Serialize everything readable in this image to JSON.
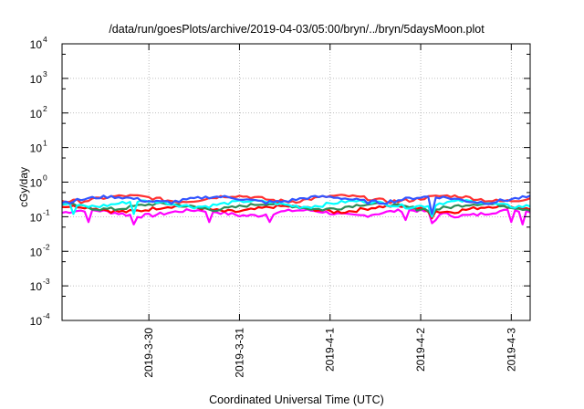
{
  "chart_data": {
    "type": "line",
    "title": "/data/run/goesPlots/archive/2019-04-03/05:00/bryn/../bryn/5daysMoon.plot",
    "xlabel": "Coordinated Universal Time (UTC)",
    "ylabel": "cGy/day",
    "yscale": "log",
    "ylim": [
      0.0001,
      10000
    ],
    "yticks": [
      {
        "mant": "10",
        "exp": "-4",
        "value": 0.0001
      },
      {
        "mant": "10",
        "exp": "-3",
        "value": 0.001
      },
      {
        "mant": "10",
        "exp": "-2",
        "value": 0.01
      },
      {
        "mant": "10",
        "exp": "-1",
        "value": 0.1
      },
      {
        "mant": "10",
        "exp": "0",
        "value": 1
      },
      {
        "mant": "10",
        "exp": "1",
        "value": 10
      },
      {
        "mant": "10",
        "exp": "2",
        "value": 100
      },
      {
        "mant": "10",
        "exp": "3",
        "value": 1000
      },
      {
        "mant": "10",
        "exp": "4",
        "value": 10000
      }
    ],
    "xlim": [
      "2019-03-29 01:00",
      "2019-04-03 05:00"
    ],
    "xticks": [
      {
        "label": "2019-3-30",
        "value": "2019-03-30 00:00"
      },
      {
        "label": "2019-3-31",
        "value": "2019-03-31 00:00"
      },
      {
        "label": "2019-4-1",
        "value": "2019-04-01 00:00"
      },
      {
        "label": "2019-4-2",
        "value": "2019-04-02 00:00"
      },
      {
        "label": "2019-4-3",
        "value": "2019-04-03 00:00"
      }
    ],
    "grid": true,
    "series": [
      {
        "color": "#ff00ff",
        "base": 0.13,
        "dips": [
          [
            "2019-03-29 08:00",
            0.07
          ],
          [
            "2019-03-29 20:00",
            0.06
          ],
          [
            "2019-03-30 16:00",
            0.07
          ],
          [
            "2019-03-31 08:00",
            0.07
          ],
          [
            "2019-04-01 20:00",
            0.08
          ],
          [
            "2019-04-02 03:00",
            0.065
          ],
          [
            "2019-04-02 04:00",
            0.08
          ],
          [
            "2019-04-03 00:00",
            0.07
          ],
          [
            "2019-04-03 02:30",
            0.06
          ]
        ]
      },
      {
        "color": "#ff0000",
        "base": 0.17,
        "dips": [
          [
            "2019-04-02 03:00",
            0.09
          ]
        ]
      },
      {
        "color": "#2e8b57",
        "base": 0.2,
        "dips": [
          [
            "2019-04-02 03:00",
            0.1
          ]
        ]
      },
      {
        "color": "#00ffff",
        "base": 0.24,
        "dips": [
          [
            "2019-03-29 04:00",
            0.12
          ],
          [
            "2019-03-29 20:00",
            0.12
          ],
          [
            "2019-04-02 03:00",
            0.1
          ]
        ]
      },
      {
        "color": "#ff3030",
        "base": 0.34,
        "dips": []
      },
      {
        "color": "#3355ff",
        "base": 0.32,
        "dips": [
          [
            "2019-04-02 03:00",
            0.12
          ]
        ]
      }
    ]
  }
}
